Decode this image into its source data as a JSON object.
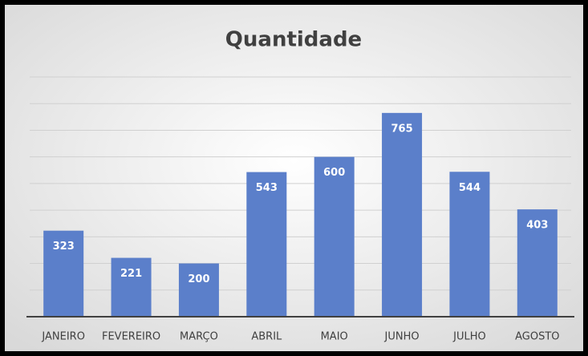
{
  "chart_data": {
    "type": "bar",
    "title": "Quantidade",
    "categories": [
      "JANEIRO",
      "FEVEREIRO",
      "MARÇO",
      "ABRIL",
      "MAIO",
      "JUNHO",
      "JULHO",
      "AGOSTO"
    ],
    "values": [
      323,
      221,
      200,
      543,
      600,
      765,
      544,
      403
    ],
    "color": "#5b7fca",
    "ylim": [
      0,
      900
    ],
    "yticks": [
      0,
      100,
      200,
      300,
      400,
      500,
      600,
      700,
      800,
      900
    ],
    "grid": true
  }
}
